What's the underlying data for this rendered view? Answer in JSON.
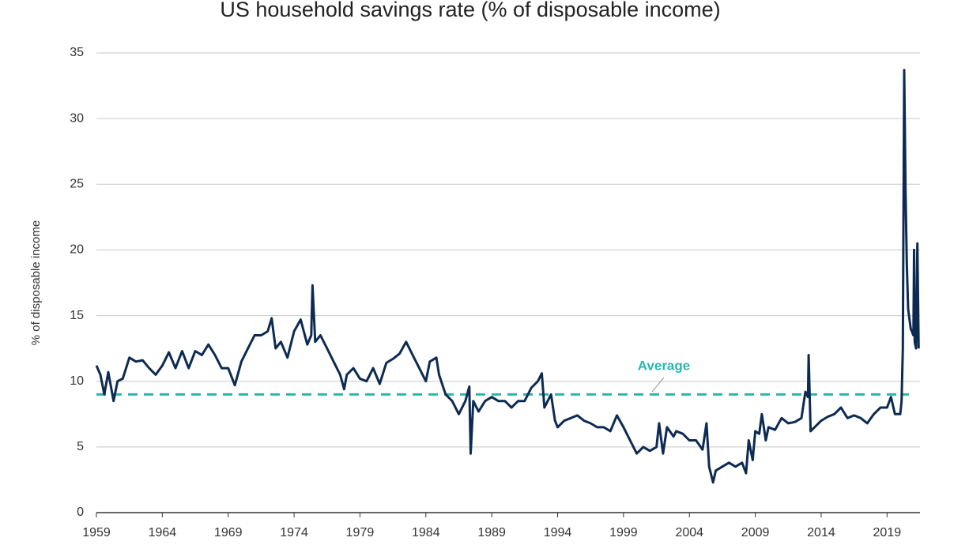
{
  "chart_data": {
    "type": "line",
    "title": "US household savings rate (% of disposable income)",
    "y_label": "% of disposable income",
    "x": [
      1959,
      1959.3,
      1959.6,
      1959.9,
      1960.3,
      1960.6,
      1961,
      1961.5,
      1962,
      1962.5,
      1963,
      1963.5,
      1964,
      1964.5,
      1965,
      1965.5,
      1966,
      1966.5,
      1967,
      1967.5,
      1968,
      1968.5,
      1969,
      1969.5,
      1970,
      1970.5,
      1971,
      1971.5,
      1972,
      1972.3,
      1972.6,
      1973,
      1973.5,
      1974,
      1974.5,
      1975,
      1975.3,
      1975.4,
      1975.6,
      1976,
      1976.5,
      1977,
      1977.5,
      1977.8,
      1978,
      1978.5,
      1979,
      1979.5,
      1980,
      1980.5,
      1981,
      1981.5,
      1982,
      1982.5,
      1983,
      1983.5,
      1984,
      1984.3,
      1984.8,
      1985,
      1985.5,
      1986,
      1986.5,
      1987,
      1987.3,
      1987.4,
      1987.6,
      1988,
      1988.5,
      1989,
      1989.5,
      1990,
      1990.5,
      1991,
      1991.5,
      1992,
      1992.5,
      1992.8,
      1993,
      1993.5,
      1993.8,
      1994,
      1994.5,
      1995,
      1995.5,
      1996,
      1996.5,
      1997,
      1997.5,
      1998,
      1998.5,
      1999,
      1999.5,
      2000,
      2000.5,
      2001,
      2001.5,
      2001.7,
      2002,
      2002.3,
      2002.8,
      2003,
      2003.5,
      2004,
      2004.5,
      2005,
      2005.3,
      2005.5,
      2005.8,
      2006,
      2006.5,
      2007,
      2007.5,
      2008,
      2008.3,
      2008.5,
      2008.8,
      2009,
      2009.3,
      2009.5,
      2009.8,
      2010,
      2010.5,
      2011,
      2011.5,
      2012,
      2012.5,
      2012.8,
      2013,
      2013.05,
      2013.2,
      2013.5,
      2014,
      2014.5,
      2015,
      2015.5,
      2016,
      2016.5,
      2017,
      2017.5,
      2018,
      2018.5,
      2019,
      2019.3,
      2019.6,
      2020,
      2020.1,
      2020.2,
      2020.3,
      2020.4,
      2020.5,
      2020.6,
      2020.8,
      2021,
      2021.05,
      2021.1,
      2021.2,
      2021.3,
      2021.4
    ],
    "series": [
      {
        "name": "US household savings rate",
        "color": "#0d2b52",
        "values": [
          11.2,
          10.5,
          9,
          10.7,
          8.5,
          10,
          10.2,
          11.8,
          11.5,
          11.6,
          11,
          10.5,
          11.2,
          12.2,
          11,
          12.3,
          11,
          12.3,
          12,
          12.8,
          12,
          11,
          11,
          9.7,
          11.5,
          12.5,
          13.5,
          13.5,
          13.8,
          14.8,
          12.5,
          13,
          11.8,
          13.8,
          14.7,
          12.8,
          13.5,
          17.3,
          13,
          13.5,
          12.5,
          11.5,
          10.5,
          9.4,
          10.5,
          11,
          10.2,
          10,
          11,
          9.8,
          11.4,
          11.7,
          12.1,
          13,
          12,
          11,
          10,
          11.5,
          11.8,
          10.5,
          9,
          8.5,
          7.5,
          8.5,
          9.6,
          4.5,
          8.5,
          7.7,
          8.5,
          8.8,
          8.5,
          8.5,
          8,
          8.5,
          8.5,
          9.5,
          10,
          10.6,
          8,
          9,
          7,
          6.5,
          7,
          7.2,
          7.4,
          7,
          6.8,
          6.5,
          6.5,
          6.2,
          7.4,
          6.5,
          5.5,
          4.5,
          5,
          4.7,
          5,
          6.8,
          4.5,
          6.5,
          5.8,
          6.2,
          6,
          5.5,
          5.5,
          4.8,
          6.8,
          3.5,
          2.3,
          3.2,
          3.5,
          3.8,
          3.5,
          3.8,
          3,
          5.5,
          4,
          6.2,
          6,
          7.5,
          5.5,
          6.5,
          6.3,
          7.2,
          6.8,
          6.9,
          7.2,
          9.2,
          8.8,
          12,
          6.2,
          6.5,
          7,
          7.3,
          7.5,
          8,
          7.2,
          7.4,
          7.2,
          6.8,
          7.5,
          8,
          8,
          8.8,
          7.5,
          7.5,
          8.5,
          12.5,
          33.7,
          24.5,
          19,
          15.5,
          14,
          13.5,
          20,
          13,
          12.5,
          20.5,
          12.5
        ]
      }
    ],
    "reference_line": {
      "value": 9,
      "label": "Average",
      "color": "#2bb5b0"
    },
    "xlim": [
      1959,
      2021.5
    ],
    "xticks": [
      1959,
      1964,
      1969,
      1974,
      1979,
      1984,
      1989,
      1994,
      1999,
      2004,
      2009,
      2014,
      2019
    ],
    "ylim": [
      0,
      35
    ],
    "yticks": [
      0,
      5,
      10,
      15,
      20,
      25,
      30,
      35
    ],
    "grid": true
  }
}
